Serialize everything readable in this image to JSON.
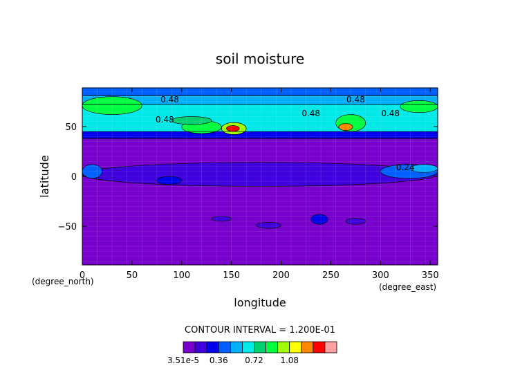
{
  "chart_data": {
    "type": "heatmap",
    "title": "soil moisture",
    "xlabel": "longitude",
    "ylabel": "latitude",
    "x_units": "(degree_east)",
    "y_units": "(degree_north)",
    "xlim": [
      0,
      357.5
    ],
    "ylim": [
      -88.75,
      88.75
    ],
    "x_ticks": [
      0,
      50,
      100,
      150,
      200,
      250,
      300,
      350
    ],
    "y_ticks": [
      -50,
      0,
      50
    ],
    "contour_interval_text": "CONTOUR INTERVAL = 1.200E-01",
    "colorbar": {
      "min": 3.51e-05,
      "interval": 0.12,
      "levels": 12,
      "tick_labels": [
        "3.51e-5",
        "0.36",
        "0.72",
        "1.08"
      ],
      "tick_values": [
        3.51e-05,
        0.36,
        0.72,
        1.08
      ],
      "colors": [
        "#7700cc",
        "#4000dd",
        "#0000ee",
        "#0060ff",
        "#00b0ff",
        "#00e8e8",
        "#00d070",
        "#00ff40",
        "#a0ff00",
        "#ffff00",
        "#ff8800",
        "#ff0000",
        "#ffa0a0"
      ]
    },
    "contour_labels": [
      {
        "text": "0.48",
        "lon": 88,
        "lat": 77
      },
      {
        "text": "0.48",
        "lon": 83,
        "lat": 57
      },
      {
        "text": "0.48",
        "lon": 230,
        "lat": 63
      },
      {
        "text": "0.48",
        "lon": 275,
        "lat": 77
      },
      {
        "text": "0.48",
        "lon": 310,
        "lat": 63
      },
      {
        "text": "0.24",
        "lon": 325,
        "lat": 9
      }
    ],
    "bands": [
      {
        "lat_min": -88.75,
        "lat_max": 38,
        "level": 0
      },
      {
        "lat_min": 38,
        "lat_max": 45,
        "level": 2
      },
      {
        "lat_min": 45,
        "lat_max": 72,
        "level": 5
      },
      {
        "lat_min": 72,
        "lat_max": 81,
        "level": 4
      },
      {
        "lat_min": 81,
        "lat_max": 88.75,
        "level": 3
      }
    ],
    "patches": [
      {
        "lon": 0,
        "lon2": 357.5,
        "lat": -10,
        "lat2": 14,
        "level": 1
      },
      {
        "lon": 0,
        "lon2": 20,
        "lat": -2,
        "lat2": 12,
        "level": 3
      },
      {
        "lon": 300,
        "lon2": 357.5,
        "lat": -2,
        "lat2": 12,
        "level": 3
      },
      {
        "lon": 330,
        "lon2": 357.5,
        "lat": 4,
        "lat2": 12,
        "level": 4
      },
      {
        "lon": 75,
        "lon2": 100,
        "lat": -8,
        "lat2": 0,
        "level": 2
      },
      {
        "lon": 140,
        "lon2": 165,
        "lat": 42,
        "lat2": 54,
        "level": 8
      },
      {
        "lon": 145,
        "lon2": 158,
        "lat": 45,
        "lat2": 51,
        "level": 11
      },
      {
        "lon": 100,
        "lon2": 140,
        "lat": 43,
        "lat2": 56,
        "level": 7
      },
      {
        "lon": 255,
        "lon2": 285,
        "lat": 45,
        "lat2": 62,
        "level": 7
      },
      {
        "lon": 258,
        "lon2": 272,
        "lat": 46,
        "lat2": 53,
        "level": 10
      },
      {
        "lon": 0,
        "lon2": 60,
        "lat": 62,
        "lat2": 80,
        "level": 7
      },
      {
        "lon": 320,
        "lon2": 357.5,
        "lat": 64,
        "lat2": 76,
        "level": 7
      },
      {
        "lon": 90,
        "lon2": 130,
        "lat": 52,
        "lat2": 60,
        "level": 6
      },
      {
        "lon": 230,
        "lon2": 247,
        "lat": -48,
        "lat2": -38,
        "level": 2
      },
      {
        "lon": 130,
        "lon2": 150,
        "lat": -45,
        "lat2": -40,
        "level": 1
      },
      {
        "lon": 175,
        "lon2": 200,
        "lat": -52,
        "lat2": -46,
        "level": 1
      },
      {
        "lon": 265,
        "lon2": 285,
        "lat": -48,
        "lat2": -42,
        "level": 1
      }
    ]
  }
}
